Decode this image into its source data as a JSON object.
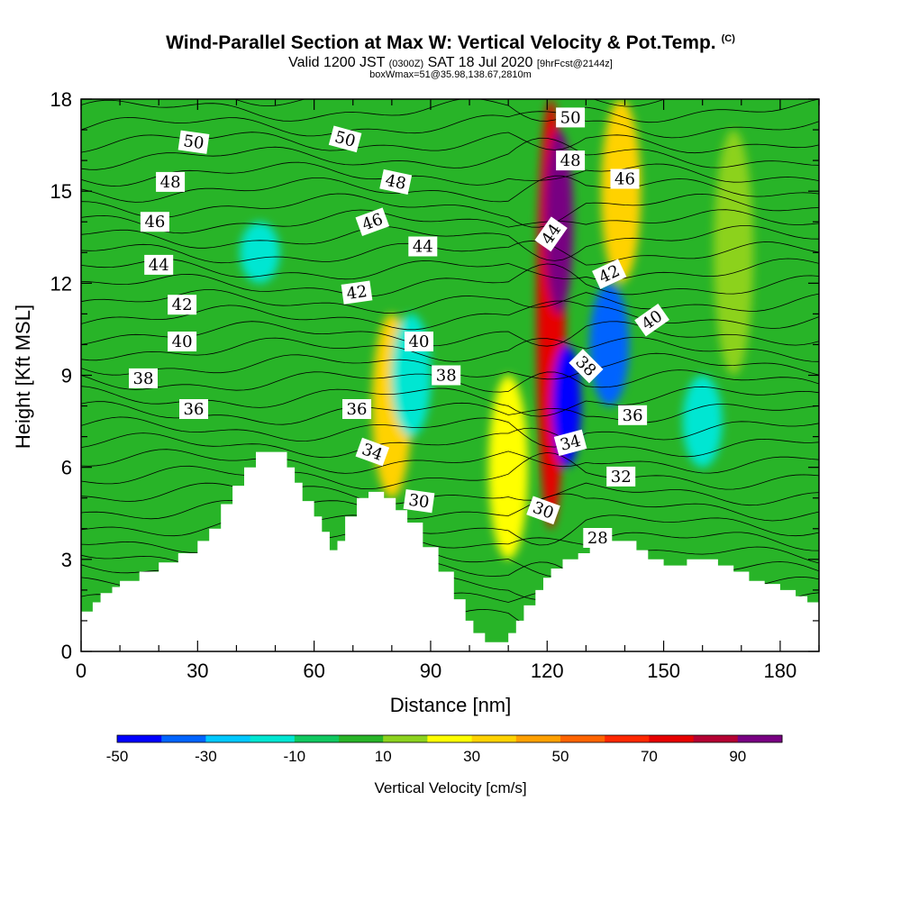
{
  "header": {
    "title": "Wind-Parallel Section at Max W: Vertical Velocity & Pot.Temp.",
    "title_mark": "(C)",
    "valid_a": "Valid 1200 JST",
    "valid_b": "(0300Z)",
    "valid_c": "SAT 18 Jul 2020",
    "valid_d": "[9hrFcst@2144z]",
    "box_line": "boxWmax=51@35.98,138.67,2810m"
  },
  "chart_data": {
    "type": "heatmap",
    "xlabel": "Distance [nm]",
    "ylabel": "Height [Kft MSL]",
    "xlim": [
      0,
      190
    ],
    "ylim": [
      0,
      18
    ],
    "x_ticks": [
      0,
      30,
      60,
      90,
      120,
      150,
      180
    ],
    "y_ticks": [
      0,
      3,
      6,
      9,
      12,
      15,
      18
    ],
    "colorbar": {
      "label": "Vertical Velocity [cm/s]",
      "ticks": [
        -50,
        -30,
        -10,
        10,
        30,
        50,
        70,
        90
      ],
      "range": [
        -50,
        100
      ],
      "colors": [
        "#0000ff",
        "#0064ff",
        "#00c8ff",
        "#00e6d2",
        "#10c860",
        "#28b428",
        "#8cd21e",
        "#ffff00",
        "#ffd200",
        "#ffa000",
        "#ff6400",
        "#ff2800",
        "#e60000",
        "#b40032",
        "#780082"
      ]
    },
    "terrain_kft": [
      [
        0,
        1.3
      ],
      [
        3,
        1.6
      ],
      [
        5,
        1.9
      ],
      [
        8,
        2.1
      ],
      [
        10,
        2.3
      ],
      [
        15,
        2.6
      ],
      [
        20,
        2.9
      ],
      [
        25,
        3.2
      ],
      [
        30,
        3.6
      ],
      [
        33,
        4.0
      ],
      [
        36,
        4.8
      ],
      [
        39,
        5.4
      ],
      [
        42,
        6.0
      ],
      [
        45,
        6.5
      ],
      [
        50,
        6.5
      ],
      [
        53,
        6.0
      ],
      [
        55,
        5.5
      ],
      [
        57,
        4.9
      ],
      [
        60,
        4.4
      ],
      [
        62,
        3.9
      ],
      [
        64,
        3.3
      ],
      [
        66,
        3.6
      ],
      [
        68,
        4.4
      ],
      [
        71,
        5.0
      ],
      [
        74,
        5.2
      ],
      [
        78,
        5.0
      ],
      [
        81,
        4.6
      ],
      [
        84,
        4.2
      ],
      [
        88,
        3.4
      ],
      [
        92,
        2.6
      ],
      [
        96,
        1.7
      ],
      [
        99,
        1.0
      ],
      [
        101,
        0.6
      ],
      [
        104,
        0.3
      ],
      [
        108,
        0.3
      ],
      [
        110,
        0.6
      ],
      [
        112,
        1.0
      ],
      [
        114,
        1.5
      ],
      [
        117,
        2.0
      ],
      [
        119,
        2.4
      ],
      [
        121,
        2.7
      ],
      [
        124,
        3.0
      ],
      [
        128,
        3.2
      ],
      [
        131,
        3.5
      ],
      [
        134,
        3.6
      ],
      [
        140,
        3.6
      ],
      [
        143,
        3.3
      ],
      [
        146,
        3.0
      ],
      [
        150,
        2.8
      ],
      [
        153,
        2.8
      ],
      [
        156,
        3.0
      ],
      [
        160,
        3.0
      ],
      [
        164,
        2.8
      ],
      [
        168,
        2.6
      ],
      [
        172,
        2.3
      ],
      [
        176,
        2.2
      ],
      [
        180,
        2.0
      ],
      [
        184,
        1.8
      ],
      [
        187,
        1.6
      ],
      [
        190,
        1.3
      ]
    ],
    "velocity_features": [
      {
        "x": 121,
        "y0": 4,
        "y1": 18,
        "value": 70
      },
      {
        "x": 123,
        "y0": 11,
        "y1": 17,
        "value": 90
      },
      {
        "x": 139,
        "y0": 12,
        "y1": 18,
        "value": 35
      },
      {
        "x": 80,
        "y0": 5,
        "y1": 11,
        "value": 30
      },
      {
        "x": 110,
        "y0": 3,
        "y1": 9,
        "value": 25
      },
      {
        "x": 168,
        "y0": 9,
        "y1": 17,
        "value": 15
      },
      {
        "x": 125,
        "y0": 6,
        "y1": 10,
        "value": -45
      },
      {
        "x": 136,
        "y0": 8,
        "y1": 12,
        "value": -40
      },
      {
        "x": 85,
        "y0": 7,
        "y1": 11,
        "value": -15
      },
      {
        "x": 46,
        "y0": 12,
        "y1": 14,
        "value": -15
      },
      {
        "x": 160,
        "y0": 6,
        "y1": 9,
        "value": -15
      }
    ],
    "theta_labels": [
      {
        "text": "50",
        "x": 29,
        "y": 16.6,
        "rot": 8
      },
      {
        "text": "48",
        "x": 23,
        "y": 15.3,
        "rot": 0
      },
      {
        "text": "46",
        "x": 19,
        "y": 14.0,
        "rot": 0
      },
      {
        "text": "44",
        "x": 20,
        "y": 12.6,
        "rot": 0
      },
      {
        "text": "42",
        "x": 26,
        "y": 11.3,
        "rot": 0
      },
      {
        "text": "40",
        "x": 26,
        "y": 10.1,
        "rot": 0
      },
      {
        "text": "38",
        "x": 16,
        "y": 8.9,
        "rot": 0
      },
      {
        "text": "36",
        "x": 29,
        "y": 7.9,
        "rot": 0
      },
      {
        "text": "50",
        "x": 68,
        "y": 16.7,
        "rot": 15
      },
      {
        "text": "48",
        "x": 81,
        "y": 15.3,
        "rot": 12
      },
      {
        "text": "46",
        "x": 75,
        "y": 14.0,
        "rot": -20
      },
      {
        "text": "44",
        "x": 88,
        "y": 13.2,
        "rot": 0
      },
      {
        "text": "42",
        "x": 71,
        "y": 11.7,
        "rot": -8
      },
      {
        "text": "40",
        "x": 87,
        "y": 10.1,
        "rot": 0
      },
      {
        "text": "38",
        "x": 94,
        "y": 9.0,
        "rot": 0
      },
      {
        "text": "36",
        "x": 71,
        "y": 7.9,
        "rot": 0
      },
      {
        "text": "34",
        "x": 75,
        "y": 6.5,
        "rot": 20
      },
      {
        "text": "30",
        "x": 87,
        "y": 4.9,
        "rot": 8
      },
      {
        "text": "50",
        "x": 126,
        "y": 17.4,
        "rot": 0
      },
      {
        "text": "48",
        "x": 126,
        "y": 16.0,
        "rot": 0
      },
      {
        "text": "46",
        "x": 140,
        "y": 15.4,
        "rot": 0
      },
      {
        "text": "44",
        "x": 121,
        "y": 13.6,
        "rot": -55
      },
      {
        "text": "42",
        "x": 136,
        "y": 12.3,
        "rot": -25
      },
      {
        "text": "40",
        "x": 147,
        "y": 10.8,
        "rot": -35
      },
      {
        "text": "38",
        "x": 130,
        "y": 9.3,
        "rot": 45
      },
      {
        "text": "36",
        "x": 142,
        "y": 7.7,
        "rot": 0
      },
      {
        "text": "34",
        "x": 126,
        "y": 6.8,
        "rot": -15
      },
      {
        "text": "32",
        "x": 139,
        "y": 5.7,
        "rot": 0
      },
      {
        "text": "30",
        "x": 119,
        "y": 4.6,
        "rot": 20
      },
      {
        "text": "28",
        "x": 133,
        "y": 3.7,
        "rot": 0
      }
    ]
  }
}
